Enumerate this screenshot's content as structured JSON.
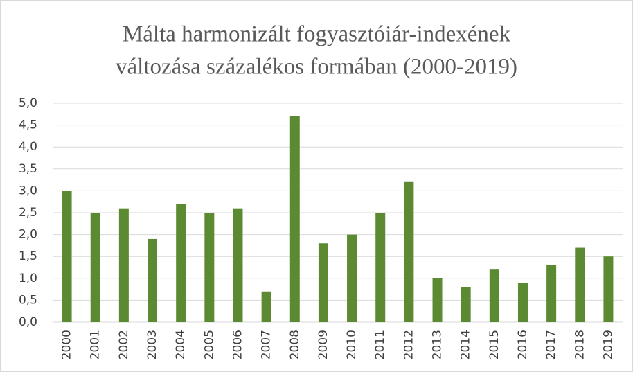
{
  "chart_data": {
    "type": "bar",
    "title": [
      "Málta harmonizált fogyasztóiár-indexének",
      "változása százalékos formában (2000-2019)"
    ],
    "categories": [
      "2000",
      "2001",
      "2002",
      "2003",
      "2004",
      "2005",
      "2006",
      "2007",
      "2008",
      "2009",
      "2010",
      "2011",
      "2012",
      "2013",
      "2014",
      "2015",
      "2016",
      "2017",
      "2018",
      "2019"
    ],
    "values": [
      3.0,
      2.5,
      2.6,
      1.9,
      2.7,
      2.5,
      2.6,
      0.7,
      4.7,
      1.8,
      2.0,
      2.5,
      3.2,
      1.0,
      0.8,
      1.2,
      0.9,
      1.3,
      1.7,
      1.5
    ],
    "color": "#5b8a32",
    "ylim": [
      0,
      5
    ],
    "yticks": [
      {
        "value": 0,
        "label": "0,0"
      },
      {
        "value": 0.5,
        "label": "0,5"
      },
      {
        "value": 1,
        "label": "1,0"
      },
      {
        "value": 1.5,
        "label": "1,5"
      },
      {
        "value": 2,
        "label": "2,0"
      },
      {
        "value": 2.5,
        "label": "2,5"
      },
      {
        "value": 3,
        "label": "3,0"
      },
      {
        "value": 3.5,
        "label": "3,5"
      },
      {
        "value": 4,
        "label": "4,0"
      },
      {
        "value": 4.5,
        "label": "4,5"
      },
      {
        "value": 5,
        "label": "5,0"
      }
    ],
    "grid": true
  }
}
